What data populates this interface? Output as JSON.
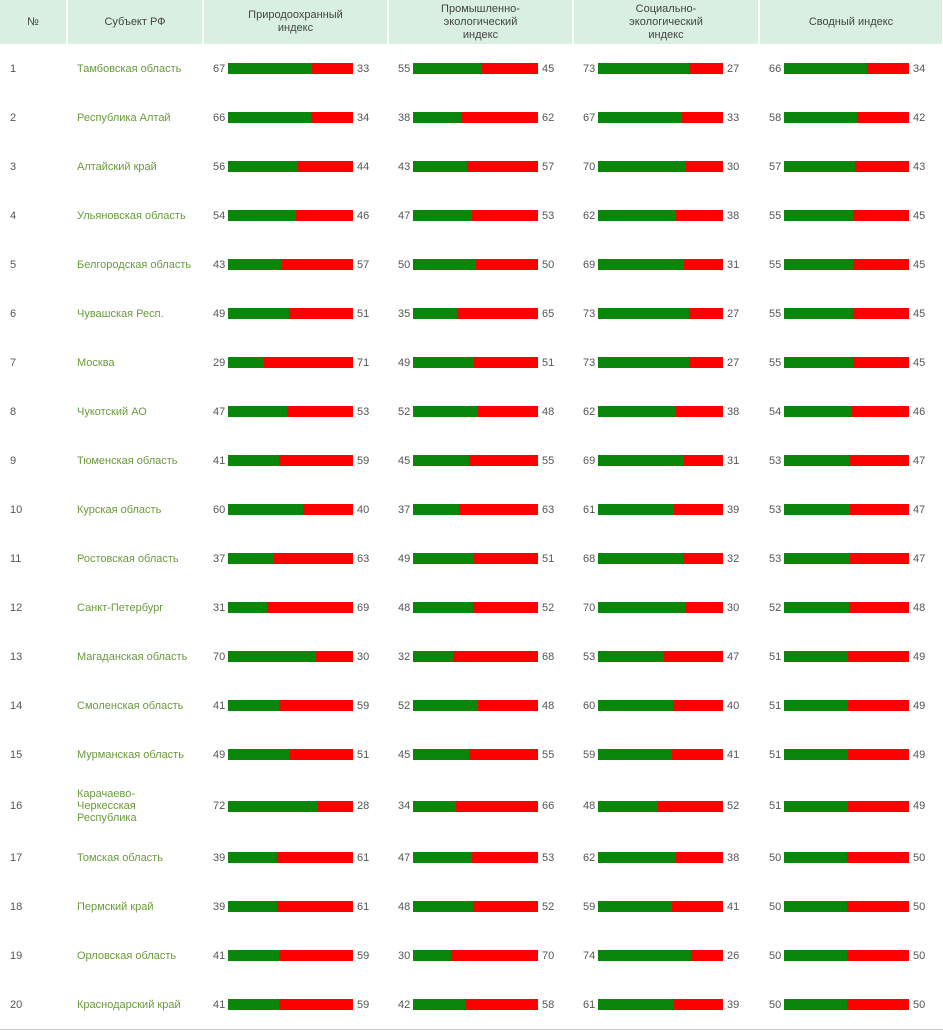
{
  "table": {
    "header": [
      "№",
      "Субъект РФ",
      "Природоохранный индекс",
      "Промышленно-экологический индекс",
      "Социально-экологический индекс",
      "Сводный индекс"
    ],
    "rows": [
      {
        "n": 1,
        "region": "Тамбовская область",
        "indices": [
          [
            67,
            33
          ],
          [
            55,
            45
          ],
          [
            73,
            27
          ],
          [
            66,
            34
          ]
        ]
      },
      {
        "n": 2,
        "region": "Республика Алтай",
        "indices": [
          [
            66,
            34
          ],
          [
            38,
            62
          ],
          [
            67,
            33
          ],
          [
            58,
            42
          ]
        ]
      },
      {
        "n": 3,
        "region": "Алтайский край",
        "indices": [
          [
            56,
            44
          ],
          [
            43,
            57
          ],
          [
            70,
            30
          ],
          [
            57,
            43
          ]
        ]
      },
      {
        "n": 4,
        "region": "Ульяновская область",
        "indices": [
          [
            54,
            46
          ],
          [
            47,
            53
          ],
          [
            62,
            38
          ],
          [
            55,
            45
          ]
        ]
      },
      {
        "n": 5,
        "region": "Белгородская область",
        "indices": [
          [
            43,
            57
          ],
          [
            50,
            50
          ],
          [
            69,
            31
          ],
          [
            55,
            45
          ]
        ]
      },
      {
        "n": 6,
        "region": "Чувашская Респ.",
        "indices": [
          [
            49,
            51
          ],
          [
            35,
            65
          ],
          [
            73,
            27
          ],
          [
            55,
            45
          ]
        ]
      },
      {
        "n": 7,
        "region": "Москва",
        "indices": [
          [
            29,
            71
          ],
          [
            49,
            51
          ],
          [
            73,
            27
          ],
          [
            55,
            45
          ]
        ]
      },
      {
        "n": 8,
        "region": "Чукотский АО",
        "indices": [
          [
            47,
            53
          ],
          [
            52,
            48
          ],
          [
            62,
            38
          ],
          [
            54,
            46
          ]
        ]
      },
      {
        "n": 9,
        "region": "Тюменская область",
        "indices": [
          [
            41,
            59
          ],
          [
            45,
            55
          ],
          [
            69,
            31
          ],
          [
            53,
            47
          ]
        ]
      },
      {
        "n": 10,
        "region": "Курская область",
        "indices": [
          [
            60,
            40
          ],
          [
            37,
            63
          ],
          [
            61,
            39
          ],
          [
            53,
            47
          ]
        ]
      },
      {
        "n": 11,
        "region": "Ростовская область",
        "indices": [
          [
            37,
            63
          ],
          [
            49,
            51
          ],
          [
            68,
            32
          ],
          [
            53,
            47
          ]
        ]
      },
      {
        "n": 12,
        "region": "Санкт-Петербург",
        "indices": [
          [
            31,
            69
          ],
          [
            48,
            52
          ],
          [
            70,
            30
          ],
          [
            52,
            48
          ]
        ]
      },
      {
        "n": 13,
        "region": "Магаданская область",
        "indices": [
          [
            70,
            30
          ],
          [
            32,
            68
          ],
          [
            53,
            47
          ],
          [
            51,
            49
          ]
        ]
      },
      {
        "n": 14,
        "region": "Смоленская область",
        "indices": [
          [
            41,
            59
          ],
          [
            52,
            48
          ],
          [
            60,
            40
          ],
          [
            51,
            49
          ]
        ]
      },
      {
        "n": 15,
        "region": "Мурманская область",
        "indices": [
          [
            49,
            51
          ],
          [
            45,
            55
          ],
          [
            59,
            41
          ],
          [
            51,
            49
          ]
        ]
      },
      {
        "n": 16,
        "region": "Карачаево-Черкесская Республика",
        "indices": [
          [
            72,
            28
          ],
          [
            34,
            66
          ],
          [
            48,
            52
          ],
          [
            51,
            49
          ]
        ]
      },
      {
        "n": 17,
        "region": "Томская область",
        "indices": [
          [
            39,
            61
          ],
          [
            47,
            53
          ],
          [
            62,
            38
          ],
          [
            50,
            50
          ]
        ]
      },
      {
        "n": 18,
        "region": "Пермский край",
        "indices": [
          [
            39,
            61
          ],
          [
            48,
            52
          ],
          [
            59,
            41
          ],
          [
            50,
            50
          ]
        ]
      },
      {
        "n": 19,
        "region": "Орловская область",
        "indices": [
          [
            41,
            59
          ],
          [
            30,
            70
          ],
          [
            74,
            26
          ],
          [
            50,
            50
          ]
        ]
      },
      {
        "n": 20,
        "region": "Краснодарский край",
        "indices": [
          [
            41,
            59
          ],
          [
            42,
            58
          ],
          [
            61,
            39
          ],
          [
            50,
            50
          ]
        ]
      }
    ]
  }
}
